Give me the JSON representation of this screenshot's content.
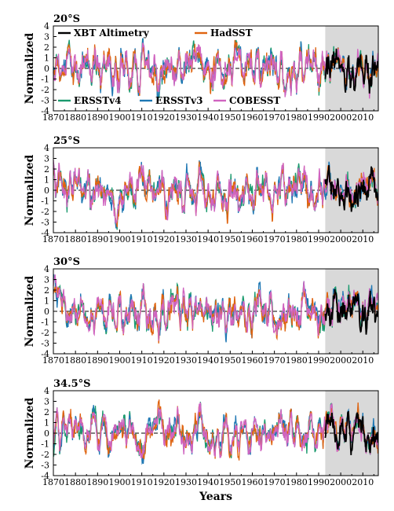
{
  "chart_data": {
    "type": "line",
    "x_axis": {
      "label": "Years",
      "range": [
        1870,
        2017
      ],
      "ticks": [
        "1870",
        "1880",
        "1890",
        "1900",
        "1910",
        "1920",
        "1930",
        "1940",
        "1950",
        "1960",
        "1970",
        "1980",
        "1990",
        "2000",
        "2010"
      ]
    },
    "y_axis": {
      "label": "Normalized",
      "range": [
        -4,
        4
      ],
      "ticks": [
        "4",
        "3",
        "2",
        "1",
        "0",
        "-1",
        "-2",
        "-3",
        "-4"
      ]
    },
    "shaded_period": [
      1993,
      2017
    ],
    "zero_line": "dashed",
    "legend": [
      {
        "name": "XBT Altimetry",
        "color": "#000000"
      },
      {
        "name": "HadSST",
        "color": "#e06410"
      },
      {
        "name": "ERSSTv4",
        "color": "#1a9a6e"
      },
      {
        "name": "ERSSTv3",
        "color": "#1f78b4"
      },
      {
        "name": "COBESST",
        "color": "#d064c0"
      }
    ],
    "panels": [
      {
        "title": "20°S",
        "seed": 11
      },
      {
        "title": "25°S",
        "seed": 23
      },
      {
        "title": "30°S",
        "seed": 37
      },
      {
        "title": "34.5°S",
        "seed": 51
      }
    ]
  }
}
